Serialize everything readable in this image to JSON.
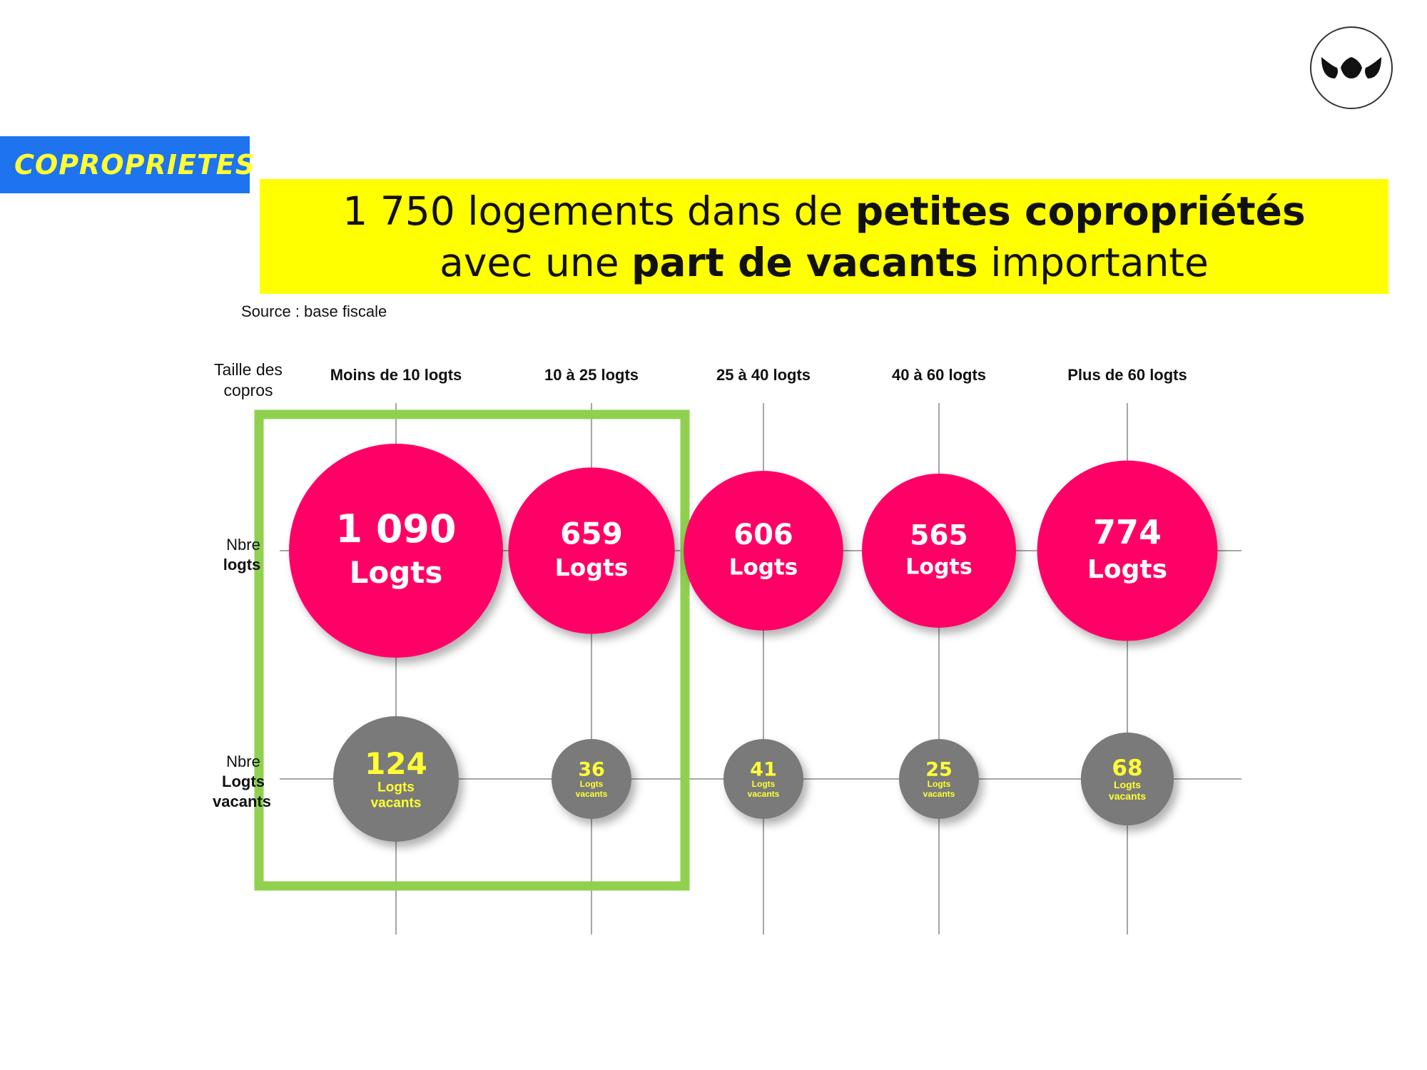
{
  "tag": "COPROPRIETES",
  "logo_icon": "leaf-logo-icon",
  "banner": {
    "line1_pre": "1 750 logements dans de ",
    "line1_bold": "petites copropriétés",
    "line2_pre": "avec une ",
    "line2_bold": "part de vacants",
    "line2_post": " importante"
  },
  "source": "Source : base fiscale",
  "row_labels": {
    "size": [
      "Taille des",
      "copros"
    ],
    "logts": [
      "Nbre",
      "logts"
    ],
    "vacants": [
      "Nbre",
      "Logts",
      "vacants"
    ]
  },
  "colors": {
    "pink": "#ff0066",
    "grey": "#7a7a7a",
    "yellow": "#ffff33",
    "green": "#8fd14f",
    "tag_blue": "#1e73ee"
  },
  "chart_data": {
    "type": "bubble",
    "categories": [
      "Moins de 10 logts",
      "10 à 25 logts",
      "25 à 40 logts",
      "40 à 60 logts",
      "Plus de 60 logts"
    ],
    "series": [
      {
        "name": "Nbre logts",
        "values": [
          1090,
          659,
          606,
          565,
          774
        ],
        "labels": [
          "1 090",
          "659",
          "606",
          "565",
          "774"
        ],
        "unit": "Logts"
      },
      {
        "name": "Nbre Logts vacants",
        "values": [
          124,
          36,
          41,
          25,
          68
        ],
        "labels": [
          "124",
          "36",
          "41",
          "25",
          "68"
        ],
        "unit": [
          "Logts",
          "vacants"
        ]
      }
    ],
    "highlight_categories": [
      "Moins de 10 logts",
      "10 à 25 logts"
    ]
  }
}
